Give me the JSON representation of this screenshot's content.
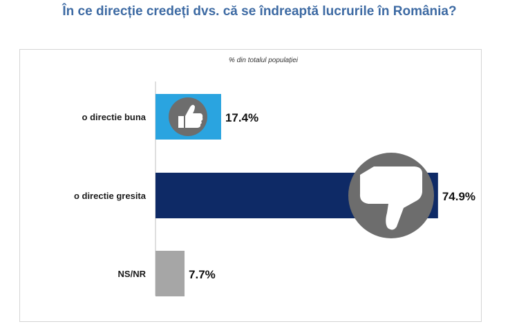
{
  "title": "În ce direcție credeți dvs. că se îndreaptă lucrurile în România?",
  "chart_data": {
    "type": "bar",
    "orientation": "horizontal",
    "subtitle": "% din totalul populației",
    "categories": [
      "o directie buna",
      "o directie gresita",
      "NS/NR"
    ],
    "values": [
      17.4,
      74.9,
      7.7
    ],
    "value_labels": [
      "17.4%",
      "74.9%",
      "7.7%"
    ],
    "colors": [
      "#2aa4e0",
      "#0e2a66",
      "#a6a6a6"
    ],
    "icons": [
      "thumbs-up-icon",
      "thumbs-down-icon",
      ""
    ],
    "xlim": [
      0,
      75.3
    ],
    "grid": false,
    "legend": "none"
  }
}
